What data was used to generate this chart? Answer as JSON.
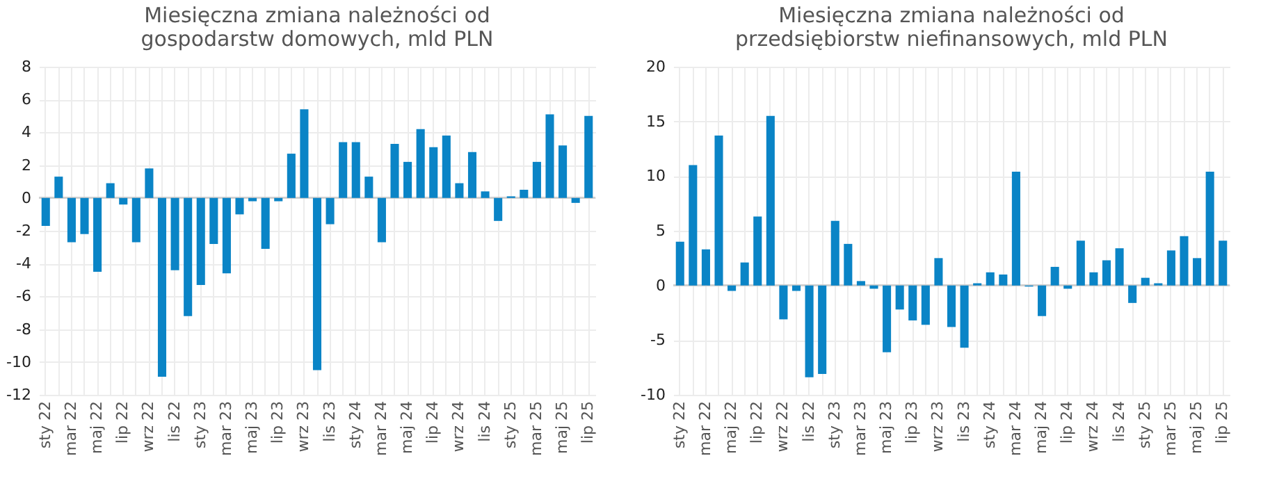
{
  "chart_data": [
    {
      "type": "bar",
      "title": "Miesięczna zmiana należności od\ngospodarstw domowych, mld PLN",
      "categories": [
        "sty 22",
        null,
        "mar 22",
        null,
        "maj 22",
        null,
        "lip 22",
        null,
        "wrz 22",
        null,
        "lis 22",
        null,
        "sty 23",
        null,
        "mar 23",
        null,
        "maj 23",
        null,
        "lip 23",
        null,
        "wrz 23",
        null,
        "lis 23",
        null,
        "sty 24",
        null,
        "mar 24",
        null,
        "maj 24",
        null,
        "lip 24",
        null,
        "wrz 24",
        null,
        "lis 24",
        null,
        "sty 25",
        null,
        "mar 25",
        null,
        "maj 25",
        null,
        "lip 25"
      ],
      "values": [
        -1.7,
        1.3,
        -2.7,
        -2.2,
        -4.5,
        0.9,
        -0.4,
        -2.7,
        1.8,
        -10.9,
        -4.4,
        -7.2,
        -5.3,
        -2.8,
        -4.6,
        -1.0,
        -0.2,
        -3.1,
        -0.2,
        2.7,
        5.4,
        -10.5,
        -1.6,
        3.4,
        3.4,
        1.3,
        -2.7,
        3.3,
        2.2,
        4.2,
        3.1,
        3.8,
        0.9,
        2.8,
        0.4,
        -1.4,
        0.1,
        0.5,
        2.2,
        5.1,
        3.2,
        -0.3,
        5.0
      ],
      "color": "#0a84c6",
      "ylim": [
        -12,
        8
      ],
      "yticks": [
        -12,
        -10,
        -8,
        -6,
        -4,
        -2,
        0,
        2,
        4,
        6,
        8
      ],
      "grid": true
    },
    {
      "type": "bar",
      "title": "Miesięczna zmiana należności od\nprzedsiębiorstw niefinansowych, mld PLN",
      "categories": [
        "sty 22",
        null,
        "mar 22",
        null,
        "maj 22",
        null,
        "lip 22",
        null,
        "wrz 22",
        null,
        "lis 22",
        null,
        "sty 23",
        null,
        "mar 23",
        null,
        "maj 23",
        null,
        "lip 23",
        null,
        "wrz 23",
        null,
        "lis 23",
        null,
        "sty 24",
        null,
        "mar 24",
        null,
        "maj 24",
        null,
        "lip 24",
        null,
        "wrz 24",
        null,
        "lis 24",
        null,
        "sty 25",
        null,
        "mar 25",
        null,
        "maj 25",
        null,
        "lip 25"
      ],
      "values": [
        4.0,
        11.0,
        3.3,
        13.7,
        -0.5,
        2.1,
        6.3,
        15.5,
        -3.1,
        -0.5,
        -8.4,
        -8.1,
        5.9,
        3.8,
        0.4,
        -0.3,
        -6.1,
        -2.2,
        -3.2,
        -3.6,
        2.5,
        -3.8,
        -5.7,
        0.2,
        1.2,
        1.0,
        10.4,
        -0.1,
        -2.8,
        1.7,
        -0.3,
        4.1,
        1.2,
        2.3,
        3.4,
        -1.6,
        0.7,
        0.2,
        3.2,
        4.5,
        2.5,
        10.4,
        4.1
      ],
      "color": "#0a84c6",
      "ylim": [
        -10,
        20
      ],
      "yticks": [
        -10,
        -5,
        0,
        5,
        10,
        15,
        20
      ],
      "grid": true
    }
  ]
}
